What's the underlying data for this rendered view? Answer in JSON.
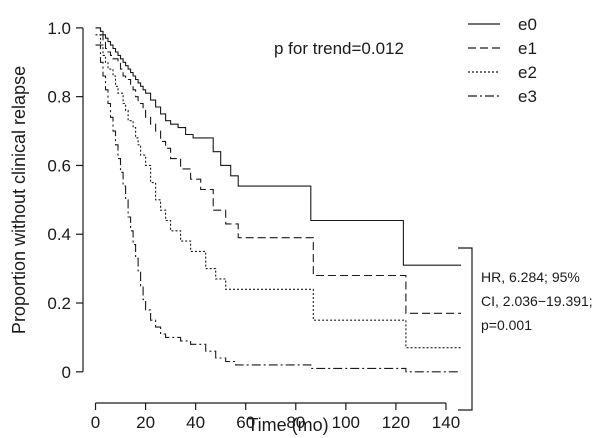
{
  "chart_data": {
    "type": "line",
    "step": true,
    "xlabel": "Time (mo)",
    "ylabel": "Proportion without clinical relapse",
    "xlim": [
      -5,
      148
    ],
    "ylim": [
      -0.05,
      1.02
    ],
    "xticks": [
      0,
      20,
      40,
      60,
      80,
      100,
      120,
      140
    ],
    "xtick_labels": [
      "0",
      "20",
      "40",
      "60",
      "80",
      "100",
      "120",
      "140"
    ],
    "yticks": [
      0,
      0.2,
      0.4,
      0.6,
      0.8,
      1.0
    ],
    "ytick_labels": [
      "0",
      "0.2",
      "0.4",
      "0.6",
      "0.8",
      "1.0"
    ],
    "annotation": "p for trend=0.012",
    "hr_text": [
      "HR, 6.284; 95%",
      "CI, 2.036−19.391;",
      "p=0.001"
    ],
    "legend_position": "top-right",
    "series": [
      {
        "name": "e0",
        "dash": "",
        "x": [
          0,
          2,
          3,
          4,
          5,
          6,
          7,
          8,
          9,
          10,
          11,
          12,
          13,
          14,
          15,
          16,
          17,
          18,
          19,
          20,
          22,
          24,
          26,
          28,
          30,
          33,
          36,
          39,
          47,
          50,
          54,
          57,
          86,
          123,
          146
        ],
        "y": [
          1.0,
          0.99,
          0.98,
          0.97,
          0.96,
          0.95,
          0.94,
          0.93,
          0.92,
          0.91,
          0.9,
          0.89,
          0.88,
          0.87,
          0.86,
          0.85,
          0.84,
          0.83,
          0.82,
          0.81,
          0.79,
          0.77,
          0.75,
          0.73,
          0.72,
          0.71,
          0.69,
          0.68,
          0.64,
          0.6,
          0.57,
          0.54,
          0.44,
          0.31,
          0.31
        ]
      },
      {
        "name": "e1",
        "dash": "8,4",
        "x": [
          0,
          2,
          3,
          4,
          5,
          6,
          7,
          9,
          10,
          11,
          12,
          14,
          15,
          16,
          17,
          19,
          20,
          22,
          24,
          26,
          28,
          30,
          34,
          38,
          42,
          47,
          52,
          57,
          87,
          124,
          146
        ],
        "y": [
          1.0,
          0.98,
          0.96,
          0.94,
          0.93,
          0.92,
          0.91,
          0.9,
          0.88,
          0.86,
          0.85,
          0.83,
          0.82,
          0.8,
          0.78,
          0.76,
          0.74,
          0.72,
          0.7,
          0.67,
          0.65,
          0.62,
          0.59,
          0.56,
          0.53,
          0.47,
          0.43,
          0.39,
          0.28,
          0.17,
          0.17
        ]
      },
      {
        "name": "e2",
        "dash": "2,2",
        "x": [
          0,
          2,
          3,
          4,
          5,
          7,
          8,
          9,
          11,
          12,
          13,
          15,
          16,
          17,
          18,
          20,
          22,
          24,
          26,
          28,
          30,
          34,
          38,
          44,
          48,
          52,
          56,
          87,
          124,
          146
        ],
        "y": [
          0.98,
          0.95,
          0.92,
          0.9,
          0.88,
          0.86,
          0.83,
          0.81,
          0.78,
          0.76,
          0.73,
          0.71,
          0.68,
          0.66,
          0.63,
          0.6,
          0.55,
          0.5,
          0.47,
          0.44,
          0.41,
          0.38,
          0.35,
          0.3,
          0.27,
          0.24,
          0.24,
          0.15,
          0.07,
          0.07
        ]
      },
      {
        "name": "e3",
        "dash": "9,3,2,3",
        "x": [
          0,
          2,
          3,
          4,
          5,
          6,
          7,
          8,
          9,
          10,
          11,
          12,
          13,
          14,
          15,
          16,
          17,
          18,
          19,
          20,
          22,
          24,
          26,
          28,
          30,
          34,
          38,
          44,
          48,
          52,
          56,
          60,
          70,
          86,
          124,
          146
        ],
        "y": [
          0.95,
          0.9,
          0.86,
          0.82,
          0.78,
          0.74,
          0.7,
          0.66,
          0.62,
          0.58,
          0.54,
          0.5,
          0.45,
          0.41,
          0.37,
          0.33,
          0.29,
          0.25,
          0.21,
          0.18,
          0.15,
          0.13,
          0.11,
          0.1,
          0.1,
          0.09,
          0.08,
          0.06,
          0.04,
          0.03,
          0.02,
          0.02,
          0.02,
          0.01,
          0.0,
          0.0
        ]
      }
    ]
  }
}
